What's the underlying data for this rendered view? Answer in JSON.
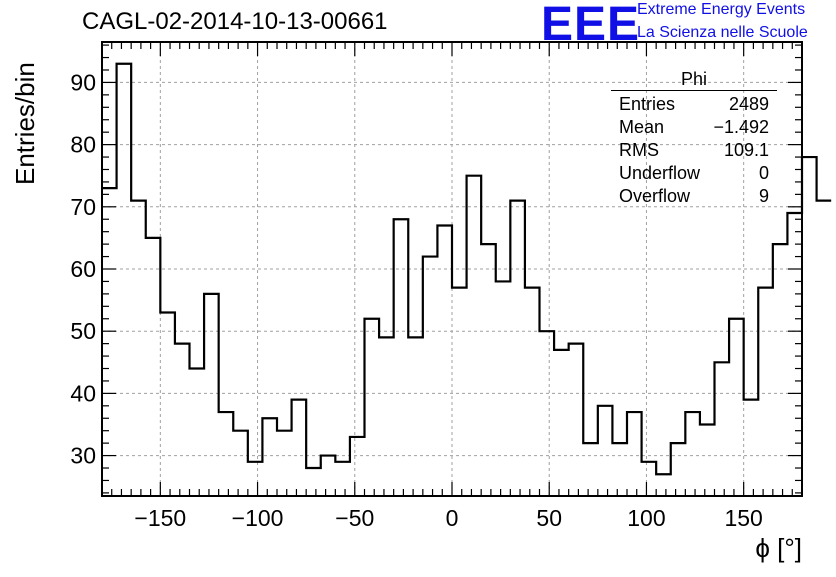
{
  "title": "CAGL-02-2014-10-13-00661",
  "logo": {
    "mark": "EEE",
    "line1": "Extreme Energy Events",
    "line2": "La Scienza nelle Scuole",
    "color": "#1010e6"
  },
  "stats": {
    "name": "Phi",
    "rows": [
      {
        "label": "Entries",
        "value": "2489"
      },
      {
        "label": "Mean",
        "value": "−1.492"
      },
      {
        "label": "RMS",
        "value": "109.1"
      },
      {
        "label": "Underflow",
        "value": "0"
      },
      {
        "label": "Overflow",
        "value": "9"
      }
    ]
  },
  "chart_data": {
    "type": "bar",
    "style": "step-histogram",
    "title": "CAGL-02-2014-10-13-00661",
    "xlabel": "ϕ [°]",
    "ylabel": "Entries/bin",
    "xlim": [
      -180,
      180
    ],
    "ylim": [
      23.5,
      96.5
    ],
    "bin_width": 7.5,
    "x_ticks": [
      -150,
      -100,
      -50,
      0,
      50,
      100,
      150
    ],
    "x_tick_labels": [
      "−150",
      "−100",
      "−50",
      "0",
      "50",
      "100",
      "150"
    ],
    "y_ticks": [
      30,
      40,
      50,
      60,
      70,
      80,
      90
    ],
    "y_tick_labels": [
      "30",
      "40",
      "50",
      "60",
      "70",
      "80",
      "90"
    ],
    "grid": true,
    "line_color": "#000000",
    "grid_color": "#a0a0a0",
    "values": [
      73,
      93,
      71,
      65,
      53,
      48,
      44,
      56,
      37,
      34,
      29,
      36,
      34,
      39,
      28,
      30,
      29,
      33,
      52,
      49,
      68,
      49,
      62,
      67,
      57,
      75,
      64,
      58,
      71,
      57,
      50,
      47,
      48,
      32,
      38,
      32,
      37,
      29,
      27,
      32,
      37,
      35,
      45,
      52,
      39,
      57,
      64,
      69,
      78,
      71
    ]
  }
}
